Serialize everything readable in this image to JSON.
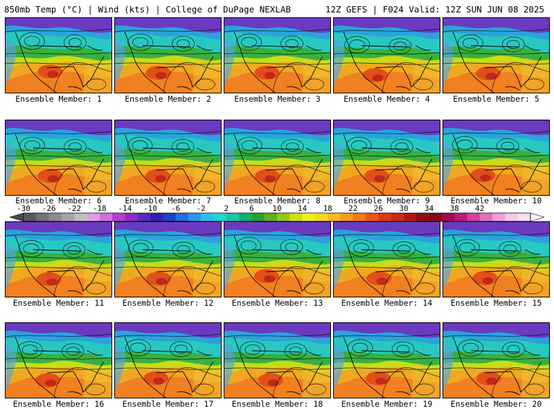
{
  "header": {
    "left": "850mb Temp (°C) | Wind (kts) | College of DuPage NEXLAB",
    "right": "12Z GEFS | F024 Valid: 12Z SUN JUN 08 2025"
  },
  "members": [
    "Ensemble Member: 1",
    "Ensemble Member: 2",
    "Ensemble Member: 3",
    "Ensemble Member: 4",
    "Ensemble Member: 5",
    "Ensemble Member: 6",
    "Ensemble Member: 7",
    "Ensemble Member: 8",
    "Ensemble Member: 9",
    "Ensemble Member: 10",
    "Ensemble Member: 11",
    "Ensemble Member: 12",
    "Ensemble Member: 13",
    "Ensemble Member: 14",
    "Ensemble Member: 15",
    "Ensemble Member: 16",
    "Ensemble Member: 17",
    "Ensemble Member: 18",
    "Ensemble Member: 19",
    "Ensemble Member: 20"
  ],
  "colorbar": {
    "labels": [
      "-30",
      "-26",
      "-22",
      "-18",
      "-14",
      "-10",
      "-6",
      "-2",
      "2",
      "6",
      "10",
      "14",
      "18",
      "22",
      "26",
      "30",
      "34",
      "38",
      "42"
    ],
    "colors": [
      "#5a5a5a",
      "#737373",
      "#8c8c8c",
      "#a6a6a6",
      "#bfbfbf",
      "#e0a0e0",
      "#d070d8",
      "#b040c8",
      "#8a2cc0",
      "#5a2ab8",
      "#3020b0",
      "#2040c8",
      "#2a6ae0",
      "#2a98ea",
      "#28c0ea",
      "#20d8d0",
      "#18c8a0",
      "#10b070",
      "#28a030",
      "#60b020",
      "#98c818",
      "#d0e010",
      "#f0f020",
      "#f8d820",
      "#f8b820",
      "#f89820",
      "#f07818",
      "#e85818",
      "#e03818",
      "#c82818",
      "#b01818",
      "#901010",
      "#800818",
      "#a00850",
      "#c01878",
      "#d040a0",
      "#e070c0",
      "#f0a0d8",
      "#f8c8e8",
      "#fae0f0"
    ]
  }
}
